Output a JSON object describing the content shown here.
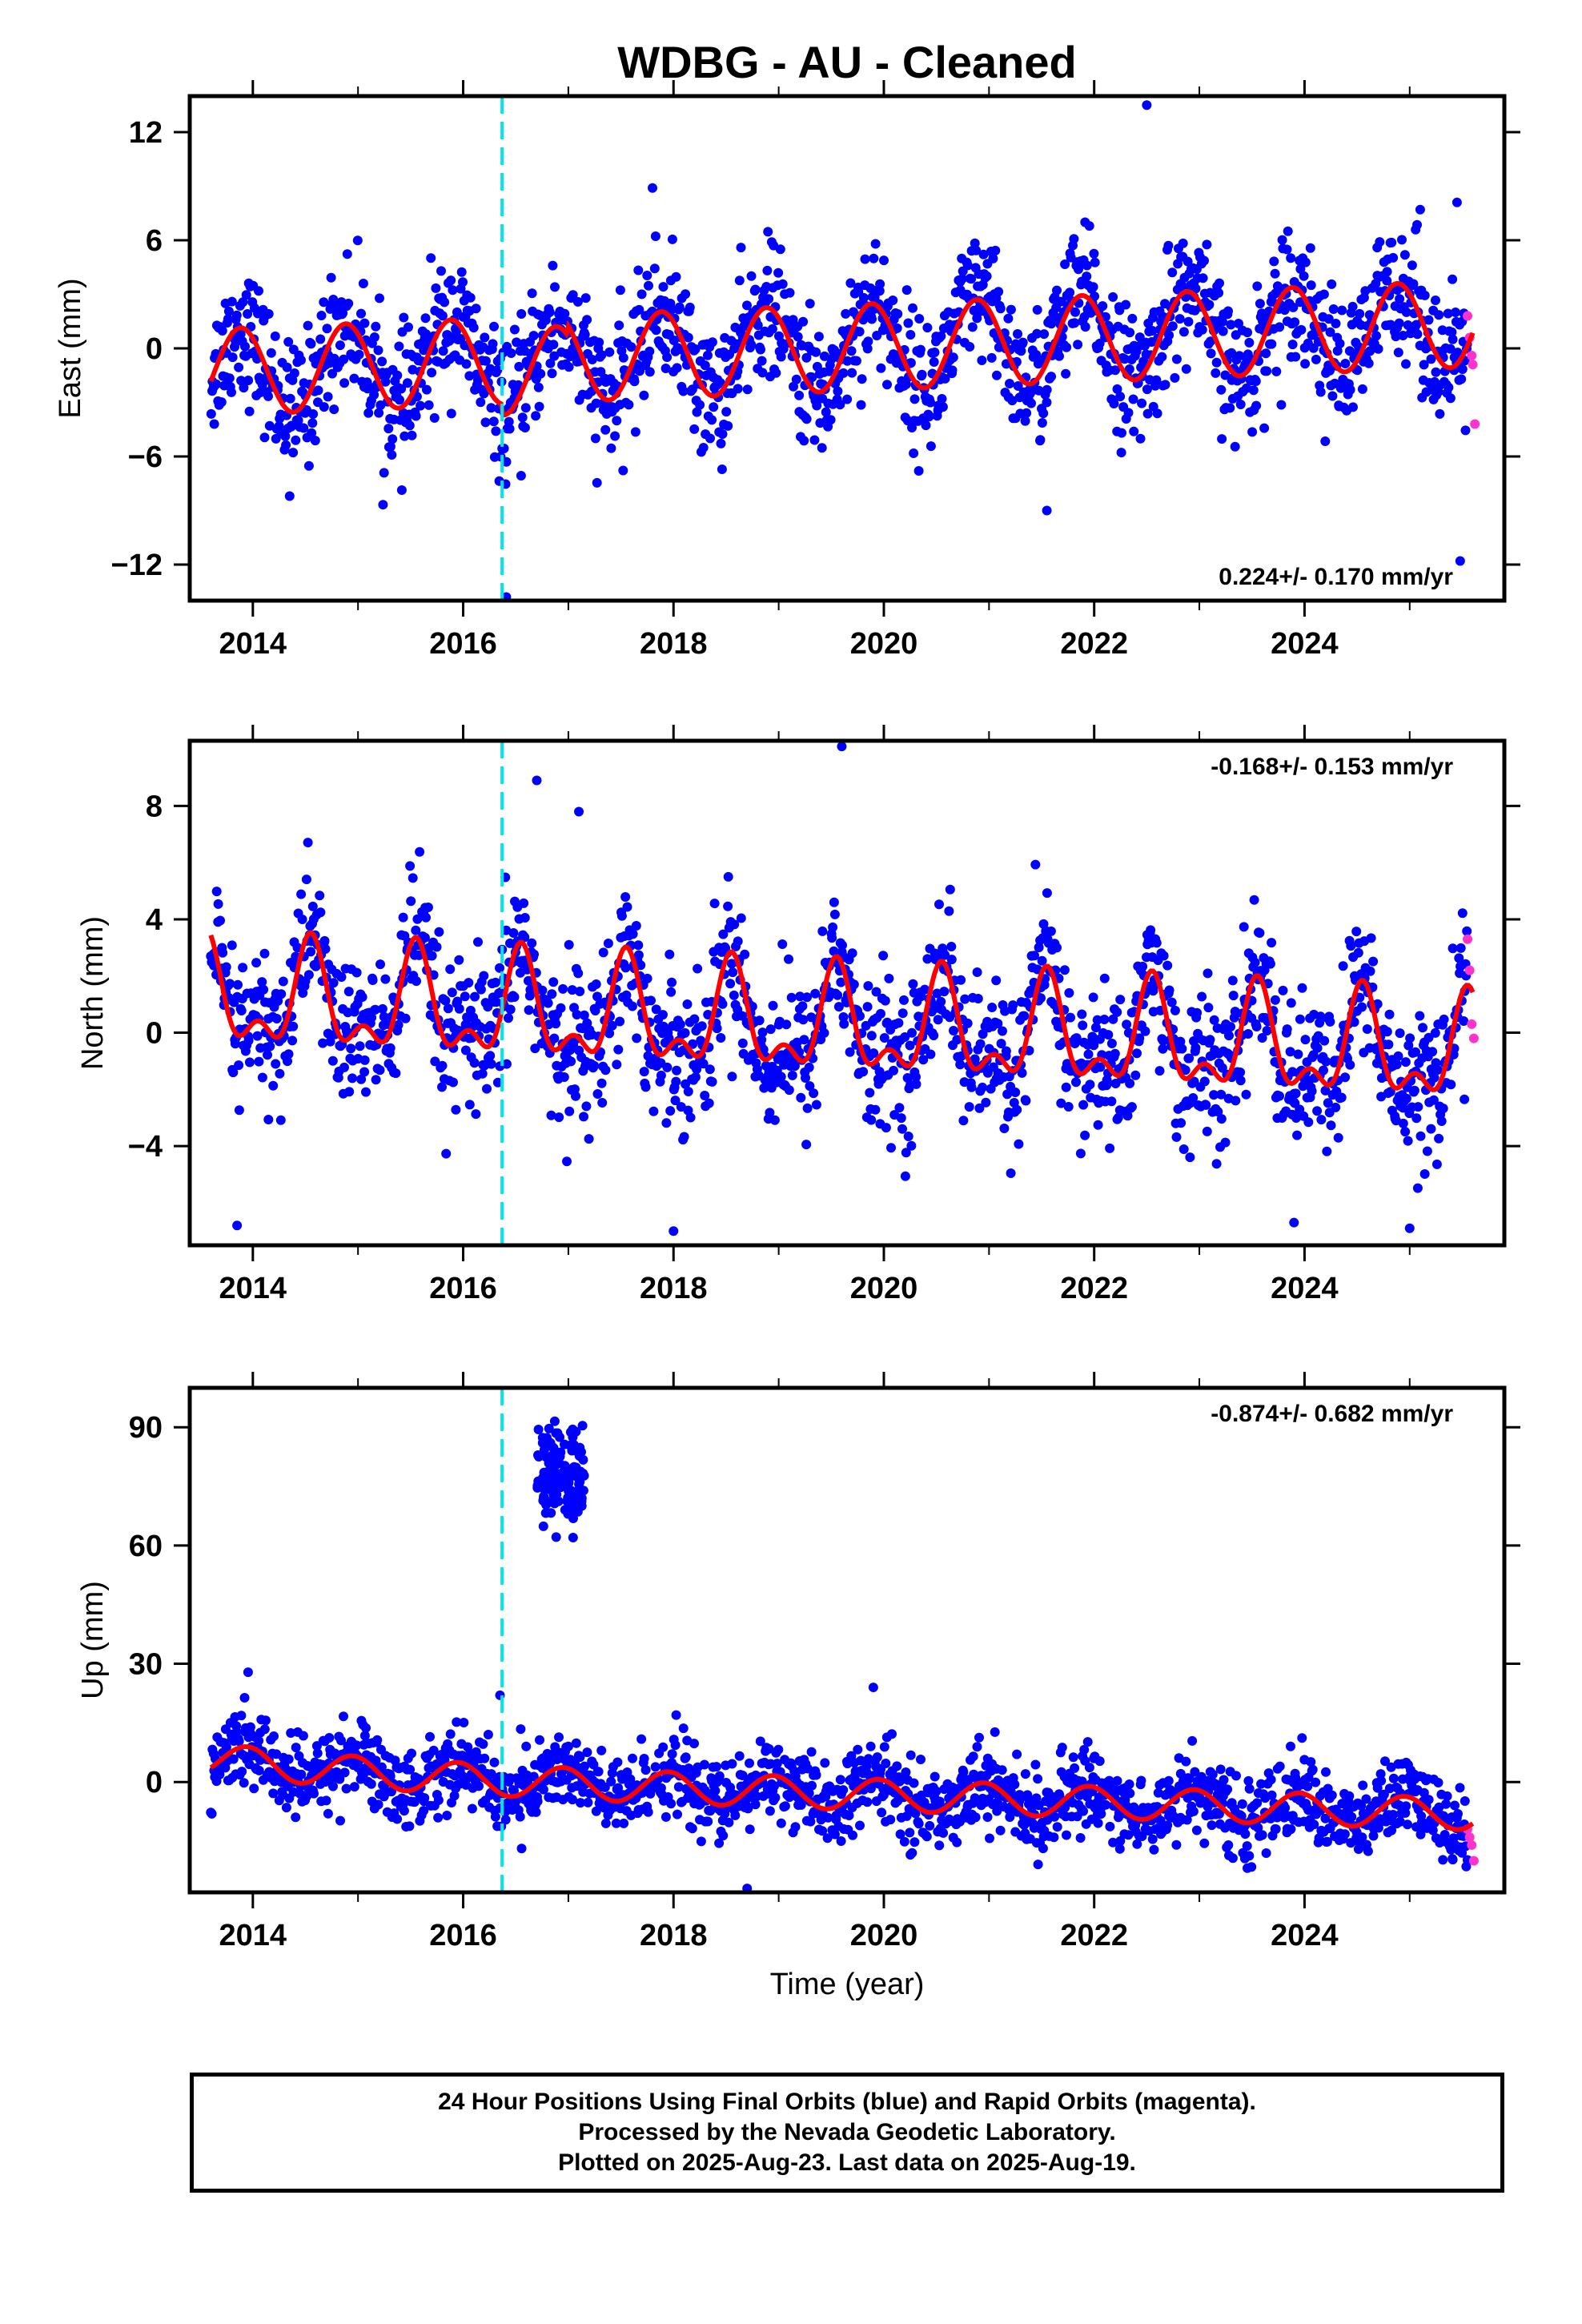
{
  "title": "WDBG  - AU - Cleaned",
  "colors": {
    "final_orbits": "#0000ff",
    "rapid_orbits": "#ff33cc",
    "model_fit": "#ff0000",
    "event_line": "#00e5ee",
    "frame": "#000000"
  },
  "x_axis": {
    "label": "Time (year)",
    "range": [
      2013.4,
      2025.9
    ],
    "ticks": [
      2014,
      2016,
      2018,
      2020,
      2022,
      2024
    ],
    "tick_labels": [
      "2014",
      "2016",
      "2018",
      "2020",
      "2022",
      "2024"
    ]
  },
  "event_line_year": 2016.37,
  "footer": {
    "lines": [
      "24 Hour Positions Using Final Orbits (blue) and Rapid Orbits (magenta).",
      "Processed by the Nevada Geodetic Laboratory.",
      "Plotted on 2025-Aug-23. Last data on 2025-Aug-19."
    ]
  },
  "chart_data": [
    {
      "type": "scatter",
      "component": "east",
      "ylabel": "East (mm)",
      "ylim": [
        -14,
        14
      ],
      "yticks": [
        -12,
        -6,
        0,
        6,
        12
      ],
      "ytick_labels": [
        "−12",
        "−6",
        "0",
        "6",
        "12"
      ],
      "rate_label": "0.224+/- 0.170 mm/yr",
      "rate_position": "bottom-right",
      "trend_mm_per_yr": 0.224,
      "annual_amplitude_mm": 2.4,
      "scatter_mm": 1.8,
      "series": [
        {
          "name": "Final Orbits (blue)",
          "color": "#0000ff"
        },
        {
          "name": "Rapid Orbits (magenta)",
          "color": "#ff33cc",
          "x": [
            2025.55,
            2025.57,
            2025.59,
            2025.6,
            2025.62
          ],
          "values": [
            1.8,
            0.6,
            -0.4,
            -0.9,
            -4.2
          ]
        },
        {
          "name": "model fit",
          "color": "#ff0000"
        }
      ],
      "outliers": {
        "x": [
          2014.35,
          2016.41,
          2022.5,
          2025.45,
          2025.48,
          2021.55,
          2017.8,
          2025.1
        ],
        "values": [
          -8.2,
          -13.8,
          13.5,
          8.1,
          -11.8,
          -9.0,
          8.9,
          7.7
        ]
      }
    },
    {
      "type": "scatter",
      "component": "north",
      "ylabel": "North (mm)",
      "ylim": [
        -7.5,
        10.3
      ],
      "yticks": [
        -4,
        0,
        4,
        8
      ],
      "ytick_labels": [
        "−4",
        "0",
        "4",
        "8"
      ],
      "rate_label": "-0.168+/- 0.153 mm/yr",
      "rate_position": "top-right",
      "trend_mm_per_yr": -0.168,
      "annual_amplitude_mm": 2.2,
      "scatter_mm": 1.3,
      "series": [
        {
          "name": "Final Orbits (blue)",
          "color": "#0000ff"
        },
        {
          "name": "Rapid Orbits (magenta)",
          "color": "#ff33cc",
          "x": [
            2025.55,
            2025.57,
            2025.59,
            2025.61
          ],
          "values": [
            3.3,
            2.2,
            0.3,
            -0.2
          ]
        },
        {
          "name": "model fit",
          "color": "#ff0000"
        }
      ],
      "outliers": {
        "x": [
          2019.6,
          2016.7,
          2017.1,
          2013.85,
          2018.0,
          2025.0,
          2023.9
        ],
        "values": [
          10.1,
          8.9,
          7.8,
          -6.8,
          -7.0,
          -6.9,
          -6.7
        ]
      }
    },
    {
      "type": "scatter",
      "component": "up",
      "ylabel": "Up (mm)",
      "ylim": [
        -28,
        100
      ],
      "yticks": [
        0,
        30,
        60,
        90
      ],
      "ytick_labels": [
        "0",
        "30",
        "60",
        "90"
      ],
      "rate_label": "-0.874+/- 0.682 mm/yr",
      "rate_position": "top-right",
      "trend_mm_per_yr": -0.874,
      "annual_amplitude_mm": 4.0,
      "scatter_mm": 5.0,
      "anomaly_cluster": {
        "x_range": [
          2016.7,
          2017.15
        ],
        "y_range": [
          62,
          96
        ]
      },
      "series": [
        {
          "name": "Final Orbits (blue)",
          "color": "#0000ff"
        },
        {
          "name": "Rapid Orbits (magenta)",
          "color": "#ff33cc",
          "x": [
            2025.55,
            2025.57,
            2025.59,
            2025.61
          ],
          "values": [
            -12,
            -14,
            -16,
            -20
          ]
        },
        {
          "name": "model fit",
          "color": "#ff0000"
        }
      ],
      "outliers": {
        "x": [
          2018.7,
          2016.35,
          2019.9
        ],
        "values": [
          -27,
          22,
          24
        ]
      }
    }
  ]
}
